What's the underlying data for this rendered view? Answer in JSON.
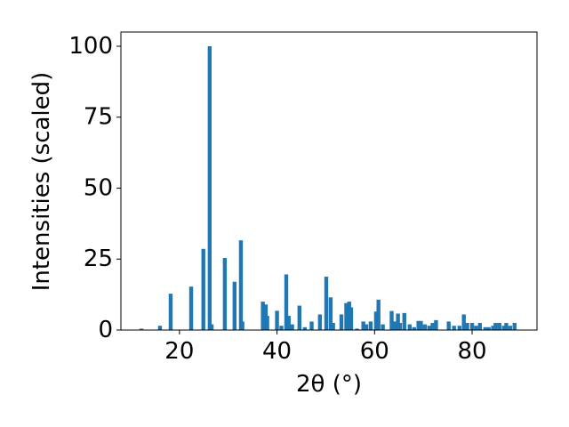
{
  "chart_data": {
    "type": "bar",
    "x": [
      12.2,
      16.0,
      18.2,
      22.4,
      24.9,
      26.2,
      26.6,
      29.3,
      31.3,
      32.6,
      32.9,
      37.1,
      37.7,
      38.0,
      40.0,
      40.9,
      41.9,
      42.4,
      43.1,
      44.6,
      45.7,
      47.1,
      48.8,
      50.1,
      51.0,
      51.5,
      53.2,
      54.2,
      54.8,
      55.2,
      56.4,
      57.7,
      58.3,
      59.2,
      60.3,
      60.8,
      61.7,
      63.5,
      64.1,
      64.8,
      65.2,
      66.1,
      67.2,
      68.1,
      69.0,
      69.5,
      70.3,
      71.2,
      71.9,
      72.6,
      75.2,
      76.3,
      77.4,
      78.3,
      79.0,
      80.0,
      80.8,
      81.6,
      82.7,
      83.4,
      84.3,
      84.8,
      85.6,
      86.5,
      87.0,
      87.8,
      88.7
    ],
    "values": [
      0.5,
      1.5,
      12.8,
      15.3,
      28.6,
      100,
      2,
      25.4,
      17,
      31.6,
      3,
      10,
      9,
      5,
      6.8,
      1.5,
      19.6,
      5,
      2,
      8.6,
      1,
      3,
      5.5,
      18.8,
      11.5,
      2.5,
      5.5,
      9.5,
      10,
      8,
      0.5,
      3,
      2,
      3,
      6.5,
      10.7,
      2,
      6.7,
      3,
      5.8,
      2.5,
      6,
      2,
      1,
      3.2,
      3.2,
      2,
      1.5,
      2.5,
      3.5,
      3,
      1.5,
      1.5,
      5.5,
      2.5,
      2.5,
      1.5,
      2.5,
      1,
      1,
      1.5,
      2.5,
      2.5,
      1.5,
      2.5,
      1.5,
      2.5
    ],
    "color": "#1f77b4",
    "xlabel": "2θ (°)",
    "ylabel": "Intensities (scaled)",
    "xlim": [
      8.0,
      93.3
    ],
    "ylim": [
      0,
      105
    ],
    "xticks": [
      20,
      40,
      60,
      80
    ],
    "yticks": [
      0,
      25,
      50,
      75,
      100
    ]
  }
}
